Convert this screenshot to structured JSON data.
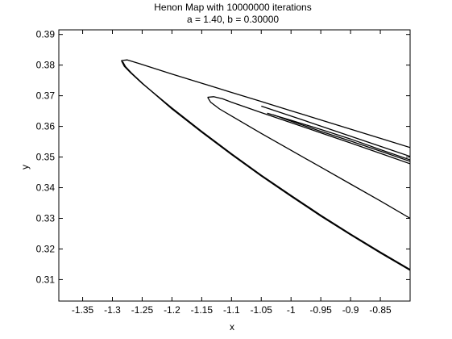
{
  "chart_data": {
    "type": "scatter",
    "title": "Henon Map with 10000000 iterations",
    "subtitle": "a = 1.40, b = 0.30000",
    "xlabel": "x",
    "ylabel": "y",
    "xlim": [
      -1.39,
      -0.8
    ],
    "ylim": [
      0.303,
      0.3915
    ],
    "xticks": [
      -1.35,
      -1.3,
      -1.25,
      -1.2,
      -1.15,
      -1.1,
      -1.05,
      -1,
      -0.95,
      -0.9,
      -0.85
    ],
    "xtick_labels": [
      "-1.35",
      "-1.3",
      "-1.25",
      "-1.2",
      "-1.15",
      "-1.1",
      "-1.05",
      "-1",
      "-0.95",
      "-0.9",
      "-0.85"
    ],
    "yticks": [
      0.31,
      0.32,
      0.33,
      0.34,
      0.35,
      0.36,
      0.37,
      0.38,
      0.39
    ],
    "ytick_labels": [
      "0.31",
      "0.32",
      "0.33",
      "0.34",
      "0.35",
      "0.36",
      "0.37",
      "0.38",
      "0.39"
    ],
    "grid": false,
    "color": "#000000",
    "series": [
      {
        "x": [
          -1.285,
          -1.275,
          -1.255,
          -1.2,
          -1.15,
          -1.1,
          -1.05,
          -1.0,
          -0.95,
          -0.9,
          -0.85,
          -0.8
        ],
        "y": [
          0.3815,
          0.3817,
          0.3805,
          0.3771,
          0.3741,
          0.3711,
          0.3681,
          0.3651,
          0.3621,
          0.3591,
          0.3561,
          0.3531
        ]
      },
      {
        "x": [
          -1.285,
          -1.28,
          -1.27,
          -1.25,
          -1.2,
          -1.15,
          -1.1,
          -1.05,
          -1.0,
          -0.95,
          -0.9,
          -0.85,
          -0.8
        ],
        "y": [
          0.3815,
          0.3796,
          0.3776,
          0.374,
          0.366,
          0.3584,
          0.3511,
          0.3441,
          0.3375,
          0.331,
          0.3249,
          0.319,
          0.3133
        ]
      },
      {
        "x": [
          -1.283,
          -1.278,
          -1.268,
          -1.248,
          -1.2,
          -1.15,
          -1.1,
          -1.05,
          -1.0,
          -0.95,
          -0.9,
          -0.85,
          -0.8
        ],
        "y": [
          0.3812,
          0.3795,
          0.3774,
          0.3738,
          0.3657,
          0.3581,
          0.3508,
          0.3438,
          0.3372,
          0.3307,
          0.3246,
          0.3187,
          0.313
        ]
      },
      {
        "x": [
          -1.14,
          -1.13,
          -1.115,
          -1.1,
          -1.05,
          -1.0,
          -0.95,
          -0.9,
          -0.85,
          -0.8
        ],
        "y": [
          0.3695,
          0.3697,
          0.369,
          0.3679,
          0.3645,
          0.3612,
          0.3579,
          0.3546,
          0.3512,
          0.3478
        ]
      },
      {
        "x": [
          -1.14,
          -1.135,
          -1.12,
          -1.1,
          -1.05,
          -1.0,
          -0.95,
          -0.9,
          -0.85,
          -0.8
        ],
        "y": [
          0.3695,
          0.3679,
          0.3657,
          0.3634,
          0.3577,
          0.3522,
          0.3467,
          0.3412,
          0.3357,
          0.33
        ]
      },
      {
        "x": [
          -1.05,
          -1.0,
          -0.95,
          -0.9,
          -0.85,
          -0.8
        ],
        "y": [
          0.3666,
          0.3634,
          0.3601,
          0.3568,
          0.3535,
          0.3502
        ]
      },
      {
        "x": [
          -1.04,
          -1.0,
          -0.95,
          -0.9,
          -0.85,
          -0.8
        ],
        "y": [
          0.3643,
          0.362,
          0.359,
          0.3559,
          0.3524,
          0.3491
        ]
      },
      {
        "x": [
          -1.03,
          -1.0,
          -0.95,
          -0.9,
          -0.85,
          -0.8
        ],
        "y": [
          0.3638,
          0.3617,
          0.3584,
          0.3552,
          0.3519,
          0.3486
        ]
      }
    ]
  }
}
